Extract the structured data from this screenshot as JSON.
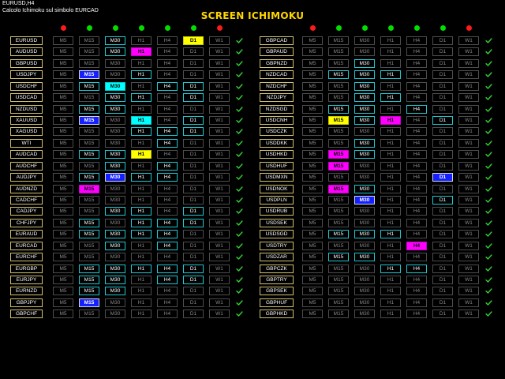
{
  "header": {
    "chart_label": "EURUSD,H4",
    "status_text": "Calcolo Ichimoku sul simbolo  EURCAD"
  },
  "title": "SCREEN ICHIMOKU",
  "timeframes": [
    "M5",
    "M15",
    "M30",
    "H1",
    "H4",
    "D1",
    "W1"
  ],
  "status_dots": {
    "left": [
      "red",
      "green",
      "green",
      "green",
      "green",
      "green",
      "red"
    ],
    "right": [
      "red",
      "green",
      "green",
      "green",
      "green",
      "green",
      "red"
    ]
  },
  "colors": {
    "red": "#ff1a1a",
    "green": "#00e000",
    "check": "#33cc33",
    "symbol_border": "#d2c270",
    "accent_cyan": "#1ec8d2"
  },
  "check_icon": "checkmark-icon",
  "panels": [
    {
      "id": "left",
      "rows": [
        {
          "symbol": "EURUSD",
          "s": "nnannyn"
        },
        {
          "symbol": "AUDUSD",
          "s": "nnamnnn"
        },
        {
          "symbol": "GBPUSD",
          "s": "nnnnnnn"
        },
        {
          "symbol": "USDJPY",
          "s": "nbnannn"
        },
        {
          "symbol": "USDCHF",
          "s": "nacnaan"
        },
        {
          "symbol": "USDCAD",
          "s": "nnaanan"
        },
        {
          "symbol": "NZDUSD",
          "s": "naannnn"
        },
        {
          "symbol": "XAUUSD",
          "s": "nbncnan"
        },
        {
          "symbol": "XAGUSD",
          "s": "nnnaaan"
        },
        {
          "symbol": "WTI",
          "s": "nnnnann"
        },
        {
          "symbol": "AUDCAD",
          "s": "naaynnn"
        },
        {
          "symbol": "AUDCHF",
          "s": "nnanann"
        },
        {
          "symbol": "AUDJPY",
          "s": "nabaann"
        },
        {
          "symbol": "AUDNZD",
          "s": "nmnnnnn"
        },
        {
          "symbol": "CADCHF",
          "s": "nnnnnnn"
        },
        {
          "symbol": "CADJPY",
          "s": "nnaanan"
        },
        {
          "symbol": "CHFJPY",
          "s": "nanaaan"
        },
        {
          "symbol": "EURAUD",
          "s": "naaaann"
        },
        {
          "symbol": "EURCAD",
          "s": "nnanann"
        },
        {
          "symbol": "EURCHF",
          "s": "nnnnnnn"
        },
        {
          "symbol": "EURGBP",
          "s": "naaaaan"
        },
        {
          "symbol": "EURJPY",
          "s": "naanaan"
        },
        {
          "symbol": "EURNZD",
          "s": "naannnn"
        },
        {
          "symbol": "GBPJPY",
          "s": "nbnnnnn"
        },
        {
          "symbol": "GBPCHF",
          "s": "nnnnnnn"
        }
      ]
    },
    {
      "id": "right",
      "rows": [
        {
          "symbol": "GBPCAD",
          "s": "nnnnnnn"
        },
        {
          "symbol": "GBPAUD",
          "s": "nnnnnnn"
        },
        {
          "symbol": "GBPNZD",
          "s": "nnannnn"
        },
        {
          "symbol": "NZDCAD",
          "s": "naaannn"
        },
        {
          "symbol": "NZDCHF",
          "s": "nnannnn"
        },
        {
          "symbol": "NZDJPY",
          "s": "nnaannn"
        },
        {
          "symbol": "NZDSGD",
          "s": "naanann"
        },
        {
          "symbol": "USDCNH",
          "s": "nyamnan"
        },
        {
          "symbol": "USDCZK",
          "s": "nnnnnnn"
        },
        {
          "symbol": "USDDKK",
          "s": "nnannnn"
        },
        {
          "symbol": "USDHKD",
          "s": "nmannnn"
        },
        {
          "symbol": "USDHUF",
          "s": "nmnnnnn"
        },
        {
          "symbol": "USDMXN",
          "s": "nnnnnbn"
        },
        {
          "symbol": "USDNOK",
          "s": "nmannnn"
        },
        {
          "symbol": "USDPLN",
          "s": "nnbnnan"
        },
        {
          "symbol": "USDRUB",
          "s": "nnnnnnn"
        },
        {
          "symbol": "USDSEK",
          "s": "nnnnnnn"
        },
        {
          "symbol": "USDSGD",
          "s": "naaannn"
        },
        {
          "symbol": "USDTRY",
          "s": "nnnnmnn"
        },
        {
          "symbol": "USDZAR",
          "s": "naannnn"
        },
        {
          "symbol": "GBPCZK",
          "s": "nnnaann"
        },
        {
          "symbol": "GBPTRY",
          "s": "nnnnnnn"
        },
        {
          "symbol": "GBPSEK",
          "s": "nnnnnnn"
        },
        {
          "symbol": "GBPHUF",
          "s": "nnnnnnn"
        },
        {
          "symbol": "GBPHKD",
          "s": "nnnnnnn"
        }
      ]
    }
  ]
}
